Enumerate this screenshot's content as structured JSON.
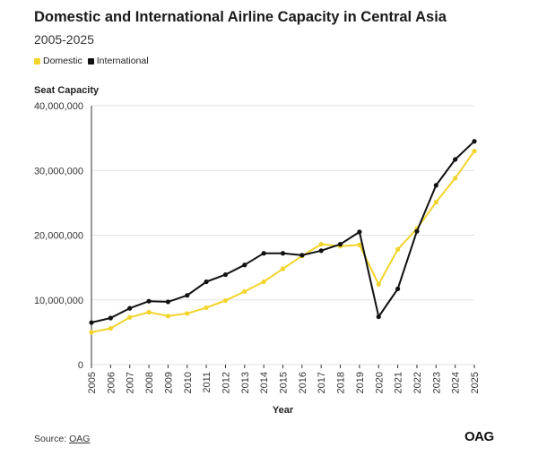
{
  "header": {
    "title": "Domestic and International Airline Capacity in Central Asia",
    "subtitle": "2005-2025"
  },
  "legend": {
    "domestic": "Domestic",
    "international": "International"
  },
  "colors": {
    "domestic": "#f2d42b",
    "international": "#111111",
    "grid": "#e2e2e2",
    "axis_text": "#333333"
  },
  "footer": {
    "source_label": "Source:",
    "source_link": "OAG",
    "logo": "OAG"
  },
  "chart_data": {
    "type": "line",
    "title": "Domestic and International Airline Capacity in Central Asia",
    "subtitle": "2005-2025",
    "ylabel": "Seat Capacity",
    "xlabel": "Year",
    "ylim": [
      0,
      40000000
    ],
    "yticks": [
      0,
      10000000,
      20000000,
      30000000,
      40000000
    ],
    "ytick_labels": [
      "0",
      "10,000,000",
      "20,000,000",
      "30,000,000",
      "40,000,000"
    ],
    "grid": true,
    "legend_position": "top-left",
    "x": [
      "2005",
      "2006",
      "2007",
      "2008",
      "2009",
      "2010",
      "2011",
      "2012",
      "2013",
      "2014",
      "2015",
      "2016",
      "2017",
      "2018",
      "2019",
      "2020",
      "2021",
      "2022",
      "2023",
      "2024",
      "2025"
    ],
    "series": [
      {
        "name": "Domestic",
        "values": [
          5000000,
          5600000,
          7300000,
          8100000,
          7500000,
          7900000,
          8800000,
          9900000,
          11300000,
          12800000,
          14800000,
          16800000,
          18600000,
          18300000,
          18500000,
          12400000,
          17800000,
          21000000,
          25100000,
          28800000,
          33000000
        ]
      },
      {
        "name": "International",
        "values": [
          6500000,
          7200000,
          8700000,
          9800000,
          9700000,
          10700000,
          12800000,
          13900000,
          15400000,
          17200000,
          17200000,
          16900000,
          17600000,
          18600000,
          20500000,
          7400000,
          11700000,
          20600000,
          27700000,
          31700000,
          34500000
        ]
      }
    ]
  }
}
